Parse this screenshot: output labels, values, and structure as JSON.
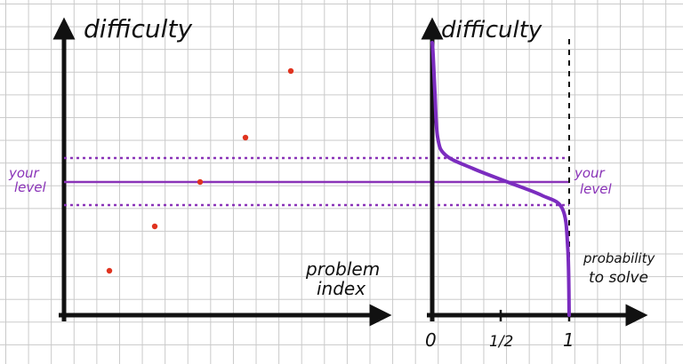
{
  "left_plot": {
    "y_label": "difficulty",
    "x_label_line1": "problem",
    "x_label_line2": "index",
    "your_level_line1": "your",
    "your_level_line2": "level"
  },
  "right_plot": {
    "y_label": "difficulty",
    "x_label_line1": "probability",
    "x_label_line2": "to solve",
    "your_level_line1": "your",
    "your_level_line2": "level",
    "ticks": [
      "0",
      "1/2",
      "1"
    ]
  },
  "colors": {
    "axis": "#111111",
    "points": "#e0331f",
    "level": "#8a34b8",
    "curve": "#7b2cbf",
    "grid": "#c9c9c9"
  },
  "chart_data": [
    {
      "type": "scatter",
      "points": [
        {
          "index": 1,
          "difficulty": 2
        },
        {
          "index": 2,
          "difficulty": 4
        },
        {
          "index": 3,
          "difficulty": 6
        },
        {
          "index": 4,
          "difficulty": 8
        },
        {
          "index": 5,
          "difficulty": 11
        }
      ],
      "your_level": 6
    },
    {
      "type": "line",
      "curve": [
        {
          "difficulty": 13,
          "p": 0.0
        },
        {
          "difficulty": 10,
          "p": 0.02
        },
        {
          "difficulty": 8,
          "p": 0.04
        },
        {
          "difficulty": 7.2,
          "p": 0.1
        },
        {
          "difficulty": 6.6,
          "p": 0.3
        },
        {
          "difficulty": 6.0,
          "p": 0.55
        },
        {
          "difficulty": 5.4,
          "p": 0.8
        },
        {
          "difficulty": 4.8,
          "p": 0.95
        },
        {
          "difficulty": 3,
          "p": 0.99
        },
        {
          "difficulty": 0,
          "p": 1.0
        }
      ],
      "your_level": 6
    }
  ]
}
